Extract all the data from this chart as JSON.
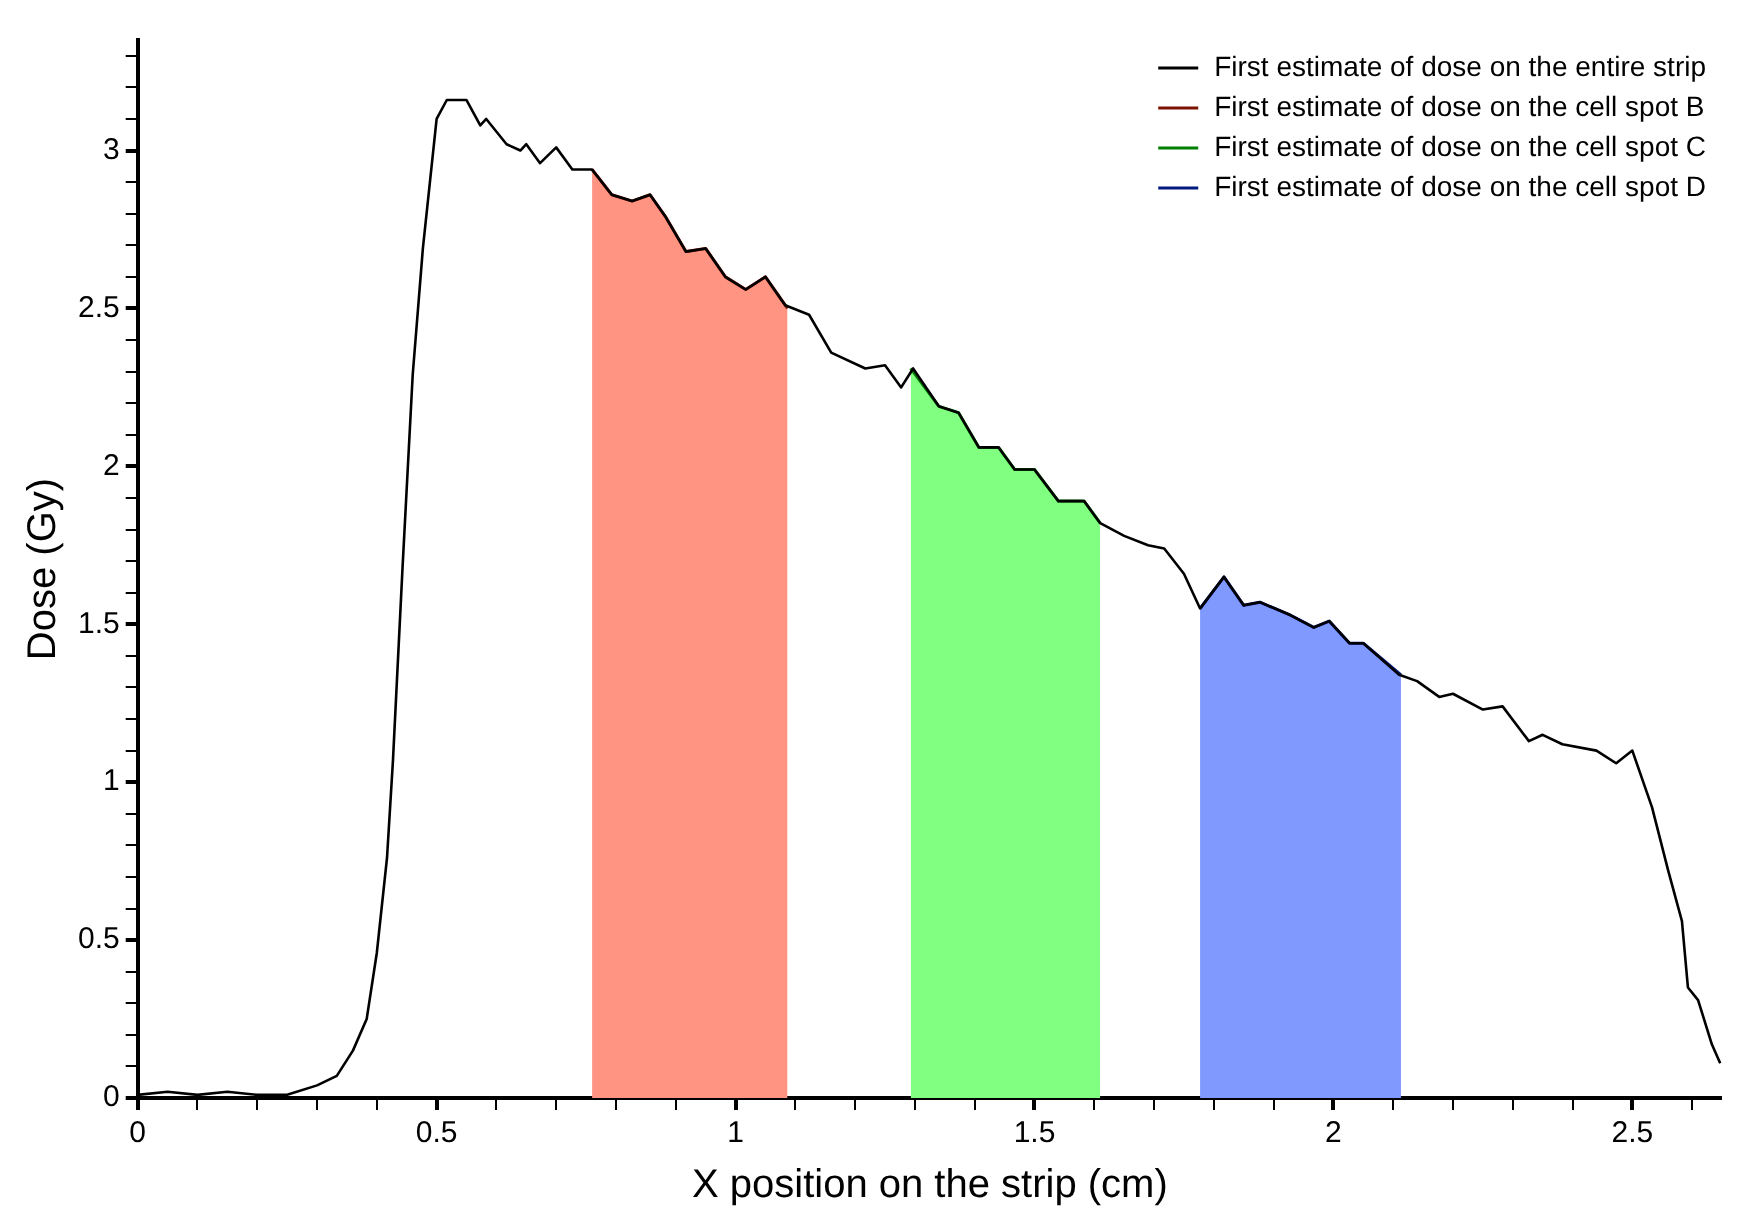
{
  "chart_data": {
    "type": "line",
    "xlabel": "X position on the strip (cm)",
    "ylabel": "Dose (Gy)",
    "xlim": [
      0,
      2.65
    ],
    "ylim": [
      0,
      3.35
    ],
    "xticks": [
      0,
      {
        "value": 0.1,
        "label": null
      },
      {
        "value": 0.2,
        "label": null
      },
      {
        "value": 0.3,
        "label": null
      },
      {
        "value": 0.4,
        "label": null
      },
      0.5,
      {
        "value": 0.6,
        "label": null
      },
      {
        "value": 0.7,
        "label": null
      },
      {
        "value": 0.8,
        "label": null
      },
      {
        "value": 0.9,
        "label": null
      },
      1,
      {
        "value": 1.1,
        "label": null
      },
      {
        "value": 1.2,
        "label": null
      },
      {
        "value": 1.3,
        "label": null
      },
      {
        "value": 1.4,
        "label": null
      },
      1.5,
      {
        "value": 1.6,
        "label": null
      },
      {
        "value": 1.7,
        "label": null
      },
      {
        "value": 1.8,
        "label": null
      },
      {
        "value": 1.9,
        "label": null
      },
      2,
      {
        "value": 2.1,
        "label": null
      },
      {
        "value": 2.2,
        "label": null
      },
      {
        "value": 2.3,
        "label": null
      },
      {
        "value": 2.4,
        "label": null
      },
      2.5,
      {
        "value": 2.6,
        "label": null
      }
    ],
    "yticks": [
      0,
      {
        "value": 0.1,
        "label": null
      },
      {
        "value": 0.2,
        "label": null
      },
      {
        "value": 0.3,
        "label": null
      },
      {
        "value": 0.4,
        "label": null
      },
      0.5,
      {
        "value": 0.6,
        "label": null
      },
      {
        "value": 0.7,
        "label": null
      },
      {
        "value": 0.8,
        "label": null
      },
      {
        "value": 0.9,
        "label": null
      },
      1,
      {
        "value": 1.1,
        "label": null
      },
      {
        "value": 1.2,
        "label": null
      },
      {
        "value": 1.3,
        "label": null
      },
      {
        "value": 1.4,
        "label": null
      },
      1.5,
      {
        "value": 1.6,
        "label": null
      },
      {
        "value": 1.7,
        "label": null
      },
      {
        "value": 1.8,
        "label": null
      },
      {
        "value": 1.9,
        "label": null
      },
      2,
      {
        "value": 2.1,
        "label": null
      },
      {
        "value": 2.2,
        "label": null
      },
      {
        "value": 2.3,
        "label": null
      },
      {
        "value": 2.4,
        "label": null
      },
      2.5,
      {
        "value": 2.6,
        "label": null
      },
      {
        "value": 2.7,
        "label": null
      },
      {
        "value": 2.8,
        "label": null
      },
      {
        "value": 2.9,
        "label": null
      },
      3,
      {
        "value": 3.1,
        "label": null
      },
      {
        "value": 3.2,
        "label": null
      },
      {
        "value": 3.3,
        "label": null
      }
    ],
    "grid": false,
    "legend": "top right",
    "marker": "none",
    "line_style": "solid",
    "series": [
      {
        "name": "First estimate of dose on the entire strip",
        "type": "line",
        "color": "#000000",
        "x": [
          0,
          0.05,
          0.1,
          0.15,
          0.2,
          0.25,
          0.3,
          0.333,
          0.36,
          0.383,
          0.4,
          0.417,
          0.427,
          0.443,
          0.46,
          0.477,
          0.5,
          0.517,
          0.55,
          0.573,
          0.583,
          0.617,
          0.64,
          0.65,
          0.673,
          0.7,
          0.727,
          0.76,
          0.793,
          0.827,
          0.857,
          0.883,
          0.917,
          0.95,
          0.983,
          1.017,
          1.05,
          1.083,
          1.123,
          1.16,
          1.217,
          1.25,
          1.277,
          1.297,
          1.34,
          1.373,
          1.407,
          1.44,
          1.467,
          1.5,
          1.54,
          1.583,
          1.61,
          1.65,
          1.69,
          1.717,
          1.75,
          1.777,
          1.817,
          1.85,
          1.877,
          1.927,
          1.967,
          1.993,
          2.027,
          2.05,
          2.11,
          2.14,
          2.177,
          2.2,
          2.25,
          2.283,
          2.327,
          2.35,
          2.383,
          2.44,
          2.473,
          2.5,
          2.533,
          2.56,
          2.583,
          2.593,
          2.61,
          2.633,
          2.647
        ],
        "values": [
          0.01,
          0.02,
          0.01,
          0.02,
          0.01,
          0.01,
          0.04,
          0.07,
          0.15,
          0.25,
          0.46,
          0.76,
          1.07,
          1.68,
          2.29,
          2.69,
          3.1,
          3.16,
          3.16,
          3.08,
          3.1,
          3.02,
          3.0,
          3.02,
          2.96,
          3.01,
          2.94,
          2.94,
          2.86,
          2.84,
          2.86,
          2.79,
          2.68,
          2.69,
          2.6,
          2.56,
          2.6,
          2.51,
          2.48,
          2.36,
          2.31,
          2.32,
          2.25,
          2.31,
          2.19,
          2.17,
          2.06,
          2.06,
          1.99,
          1.99,
          1.89,
          1.89,
          1.82,
          1.78,
          1.75,
          1.74,
          1.66,
          1.55,
          1.65,
          1.56,
          1.57,
          1.53,
          1.49,
          1.51,
          1.44,
          1.44,
          1.34,
          1.32,
          1.27,
          1.28,
          1.23,
          1.24,
          1.13,
          1.15,
          1.12,
          1.1,
          1.06,
          1.1,
          0.92,
          0.72,
          0.56,
          0.35,
          0.31,
          0.17,
          0.11
        ]
      },
      {
        "name": "First estimate of dose on the cell spot B",
        "type": "area",
        "color": "#ff9482",
        "x": [
          0.76,
          0.793,
          0.827,
          0.857,
          0.883,
          0.917,
          0.95,
          0.983,
          1.017,
          1.05,
          1.087
        ],
        "values": [
          2.94,
          2.86,
          2.84,
          2.86,
          2.79,
          2.68,
          2.69,
          2.6,
          2.56,
          2.6,
          2.5
        ]
      },
      {
        "name": "First estimate of dose on the cell spot C",
        "type": "area",
        "color": "#80ff80",
        "x": [
          1.293,
          1.34,
          1.373,
          1.407,
          1.44,
          1.467,
          1.5,
          1.54,
          1.583,
          1.61
        ],
        "values": [
          2.31,
          2.19,
          2.17,
          2.06,
          2.06,
          1.99,
          1.99,
          1.89,
          1.89,
          1.82
        ]
      },
      {
        "name": "First estimate of dose on the cell spot D",
        "type": "area",
        "color": "#8099ff",
        "x": [
          1.777,
          1.817,
          1.85,
          1.877,
          1.927,
          1.967,
          1.993,
          2.027,
          2.05,
          2.113
        ],
        "values": [
          1.55,
          1.65,
          1.56,
          1.57,
          1.53,
          1.49,
          1.51,
          1.44,
          1.44,
          1.34
        ]
      }
    ]
  }
}
